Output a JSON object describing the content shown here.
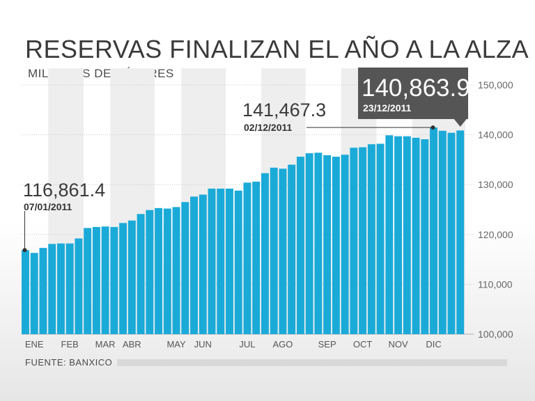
{
  "chart_data": {
    "type": "bar",
    "title": "RESERVAS FINALIZAN EL AÑO A LA ALZA",
    "ylabel": "MILLONES DE DÓLARES",
    "source": "FUENTE: BANXICO",
    "ylim": [
      100000,
      150000
    ],
    "yticks": [
      {
        "value": 100000,
        "label": "100,000"
      },
      {
        "value": 110000,
        "label": "110,000"
      },
      {
        "value": 120000,
        "label": "120,000"
      },
      {
        "value": 130000,
        "label": "130,000"
      },
      {
        "value": 140000,
        "label": "140,000"
      },
      {
        "value": 150000,
        "label": "150,000"
      }
    ],
    "grid": true,
    "values": [
      116861.4,
      116300,
      117300,
      118100,
      118200,
      118200,
      119200,
      121300,
      121500,
      121600,
      121500,
      122300,
      122800,
      124100,
      124900,
      125300,
      125200,
      125500,
      126500,
      127600,
      128000,
      129200,
      129200,
      129200,
      128800,
      130400,
      130600,
      132300,
      133400,
      133200,
      134000,
      135600,
      136300,
      136400,
      135900,
      135600,
      136000,
      137400,
      137500,
      138100,
      138200,
      139900,
      139700,
      139700,
      139400,
      139100,
      141467.3,
      140800,
      140400,
      140863.9
    ],
    "months": [
      {
        "label": "ENE",
        "index": 1
      },
      {
        "label": "FEB",
        "index": 5
      },
      {
        "label": "MAR",
        "index": 9
      },
      {
        "label": "ABR",
        "index": 12
      },
      {
        "label": "MAY",
        "index": 17
      },
      {
        "label": "JUN",
        "index": 20
      },
      {
        "label": "JUL",
        "index": 25
      },
      {
        "label": "AGO",
        "index": 29
      },
      {
        "label": "SEP",
        "index": 34
      },
      {
        "label": "OCT",
        "index": 38
      },
      {
        "label": "NOV",
        "index": 42
      },
      {
        "label": "DIC",
        "index": 46
      }
    ],
    "annotations": [
      {
        "value": "116,861.4",
        "date": "07/01/2011",
        "index": 0,
        "style": "plain"
      },
      {
        "value": "141,467.3",
        "date": "02/12/2011",
        "index": 46,
        "style": "plain"
      },
      {
        "value": "140,863.9",
        "date": "23/12/2011",
        "index": 49,
        "style": "box"
      }
    ],
    "colors": {
      "bar": "#1aaad8",
      "band": "#eeeeee",
      "callout": "#555555",
      "text": "#3a3a3a"
    }
  }
}
